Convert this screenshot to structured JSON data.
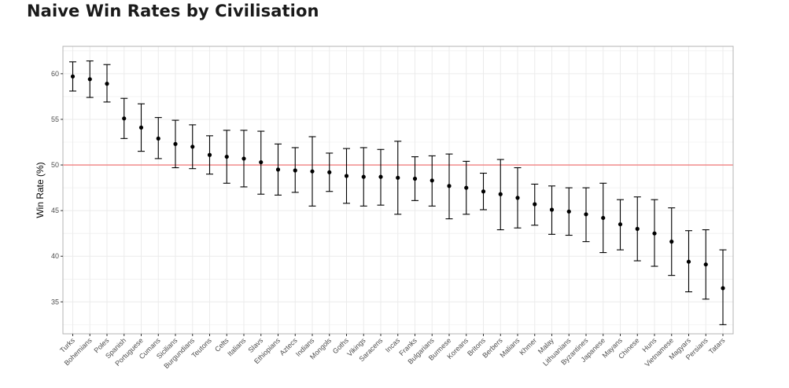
{
  "title": "Naive Win Rates by Civilisation",
  "chart_data": {
    "type": "scatter",
    "title": "Naive Win Rates by Civilisation",
    "xlabel": "",
    "ylabel": "Win Rate (%)",
    "ylim": [
      31.5,
      63
    ],
    "yticks": [
      35,
      40,
      45,
      50,
      55,
      60
    ],
    "reference_line": 50,
    "reference_line_color": "#f08080",
    "grid": true,
    "legend": "none",
    "categories": [
      "Turks",
      "Bohemians",
      "Poles",
      "Spanish",
      "Portuguese",
      "Cumans",
      "Sicilians",
      "Burgundians",
      "Teutons",
      "Celts",
      "Italians",
      "Slavs",
      "Ethiopians",
      "Aztecs",
      "Indians",
      "Mongols",
      "Goths",
      "Vikings",
      "Saracens",
      "Incas",
      "Franks",
      "Bulgarians",
      "Burmese",
      "Koreans",
      "Britons",
      "Berbers",
      "Malians",
      "Khmer",
      "Malay",
      "Lithuanians",
      "Byzantines",
      "Japanese",
      "Mayans",
      "Chinese",
      "Huns",
      "Vietnamese",
      "Magyars",
      "Persians",
      "Tatars"
    ],
    "values": [
      59.7,
      59.4,
      58.9,
      55.1,
      54.1,
      52.9,
      52.3,
      52.0,
      51.1,
      50.9,
      50.7,
      50.3,
      49.5,
      49.4,
      49.3,
      49.2,
      48.8,
      48.7,
      48.7,
      48.6,
      48.5,
      48.3,
      47.7,
      47.5,
      47.1,
      46.8,
      46.4,
      45.7,
      45.1,
      44.9,
      44.6,
      44.2,
      43.5,
      43.0,
      42.5,
      41.6,
      39.4,
      39.1,
      36.5
    ],
    "lower": [
      58.1,
      57.4,
      56.9,
      52.9,
      51.5,
      50.7,
      49.7,
      49.6,
      49.0,
      48.0,
      47.6,
      46.8,
      46.7,
      47.0,
      45.5,
      47.1,
      45.8,
      45.5,
      45.6,
      44.6,
      46.1,
      45.5,
      44.1,
      44.6,
      45.1,
      42.9,
      43.1,
      43.4,
      42.4,
      42.3,
      41.6,
      40.4,
      40.7,
      39.5,
      38.9,
      37.9,
      36.1,
      35.3,
      32.5
    ],
    "upper": [
      61.3,
      61.4,
      61.0,
      57.3,
      56.7,
      55.2,
      54.9,
      54.4,
      53.2,
      53.8,
      53.8,
      53.7,
      52.3,
      51.9,
      53.1,
      51.3,
      51.8,
      51.9,
      51.7,
      52.6,
      50.9,
      51.0,
      51.2,
      50.4,
      49.1,
      50.6,
      49.7,
      47.9,
      47.7,
      47.5,
      47.5,
      48.0,
      46.2,
      46.5,
      46.2,
      45.3,
      42.8,
      42.9,
      40.7
    ],
    "colors": {
      "point": "#000000",
      "errorbar": "#000000",
      "reference": "#f08080",
      "grid": "#ebebeb",
      "panel_border": "#b3b3b3"
    }
  }
}
